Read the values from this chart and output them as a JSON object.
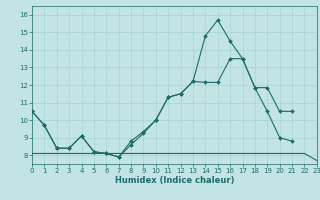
{
  "xlabel": "Humidex (Indice chaleur)",
  "xlim": [
    0,
    23
  ],
  "ylim": [
    7.5,
    16.5
  ],
  "yticks": [
    8,
    9,
    10,
    11,
    12,
    13,
    14,
    15,
    16
  ],
  "xticks": [
    0,
    1,
    2,
    3,
    4,
    5,
    6,
    7,
    8,
    9,
    10,
    11,
    12,
    13,
    14,
    15,
    16,
    17,
    18,
    19,
    20,
    21,
    22,
    23
  ],
  "bg_color": "#c2e4e4",
  "line_color": "#1e6b6b",
  "grid_color": "#a8d4d4",
  "line1_x": [
    0,
    1,
    2,
    3,
    4,
    5,
    6,
    7,
    8,
    9,
    10,
    11,
    12,
    13,
    14,
    15,
    16,
    17,
    18,
    19,
    20,
    21,
    22,
    23
  ],
  "line1_y": [
    10.5,
    9.7,
    8.4,
    8.4,
    9.1,
    8.2,
    8.1,
    7.9,
    8.8,
    9.35,
    10.0,
    11.3,
    11.5,
    12.2,
    14.8,
    15.7,
    14.5,
    13.5,
    11.85,
    10.5,
    9.0,
    8.8,
    null,
    null
  ],
  "line2_x": [
    0,
    1,
    2,
    3,
    4,
    5,
    6,
    7,
    8,
    9,
    10,
    11,
    12,
    13,
    14,
    15,
    16,
    17,
    18,
    19,
    20,
    21,
    22,
    23
  ],
  "line2_y": [
    10.5,
    9.7,
    8.4,
    8.4,
    9.1,
    8.2,
    8.1,
    7.9,
    8.6,
    9.25,
    10.0,
    11.3,
    11.5,
    12.2,
    12.15,
    12.15,
    13.5,
    13.5,
    11.85,
    11.85,
    10.5,
    10.5,
    null,
    null
  ],
  "line3_x": [
    0,
    1,
    2,
    3,
    4,
    5,
    6,
    7,
    8,
    9,
    10,
    11,
    12,
    13,
    14,
    15,
    16,
    17,
    18,
    19,
    20,
    21,
    22,
    23
  ],
  "line3_y": [
    8.1,
    8.1,
    8.1,
    8.1,
    8.1,
    8.1,
    8.1,
    8.1,
    8.1,
    8.1,
    8.1,
    8.1,
    8.1,
    8.1,
    8.1,
    8.1,
    8.1,
    8.1,
    8.1,
    8.1,
    8.1,
    8.1,
    8.1,
    7.7
  ]
}
